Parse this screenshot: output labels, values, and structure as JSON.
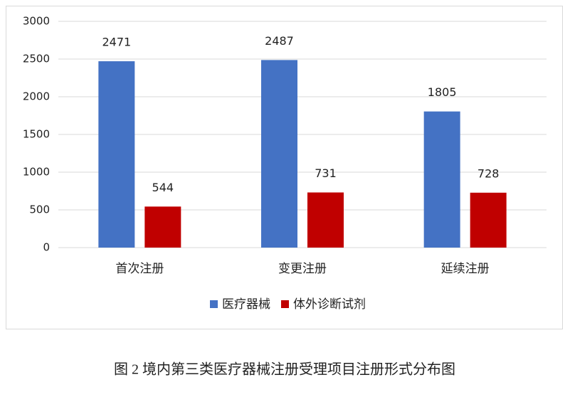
{
  "chart_data": {
    "type": "bar",
    "categories": [
      "首次注册",
      "变更注册",
      "延续注册"
    ],
    "series": [
      {
        "name": "医疗器械",
        "color": "#4472c4",
        "values": [
          2471,
          2487,
          1805
        ]
      },
      {
        "name": "体外诊断试剂",
        "color": "#c00000",
        "values": [
          544,
          731,
          728
        ]
      }
    ],
    "ylim": [
      0,
      3000
    ],
    "yticks": [
      0,
      500,
      1000,
      1500,
      2000,
      2500,
      3000
    ],
    "grid": true,
    "legend": "bottom",
    "caption": "图 2  境内第三类医疗器械注册受理项目注册形式分布图"
  }
}
